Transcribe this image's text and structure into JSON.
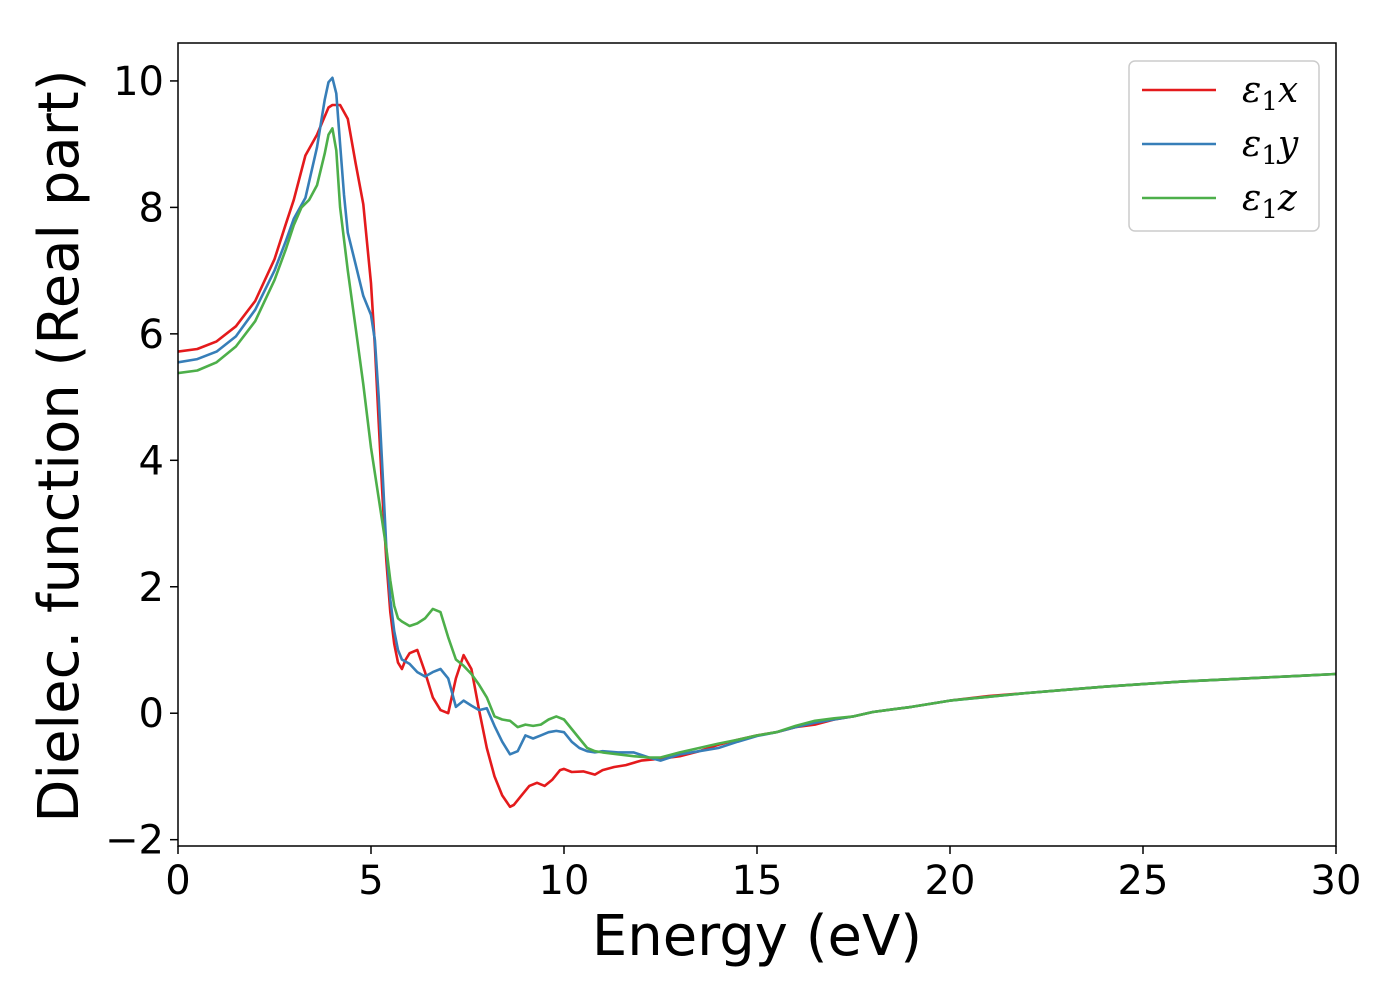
{
  "chart_data": {
    "type": "line",
    "title": "",
    "xlabel": "Energy (eV)",
    "ylabel": "Dielec. function (Real part)",
    "xlim": [
      0,
      30
    ],
    "ylim": [
      -2.1,
      10.6
    ],
    "xticks": [
      0,
      5,
      10,
      15,
      20,
      25,
      30
    ],
    "xtick_labels": [
      "0",
      "5",
      "10",
      "15",
      "20",
      "25",
      "30"
    ],
    "yticks": [
      -2,
      0,
      2,
      4,
      6,
      8,
      10
    ],
    "ytick_labels": [
      "−2",
      "0",
      "2",
      "4",
      "6",
      "8",
      "10"
    ],
    "grid": false,
    "legend_position": "top-right",
    "series": [
      {
        "name": "ε1x",
        "label_base": "ε",
        "label_sub": "1",
        "label_var": "x",
        "color": "#e41a1c",
        "x": [
          0,
          0.5,
          1,
          1.5,
          2,
          2.5,
          2.8,
          3,
          3.3,
          3.6,
          3.9,
          4.0,
          4.2,
          4.4,
          4.6,
          4.8,
          5.0,
          5.1,
          5.2,
          5.3,
          5.4,
          5.5,
          5.6,
          5.7,
          5.8,
          5.9,
          6.0,
          6.2,
          6.4,
          6.6,
          6.8,
          7.0,
          7.2,
          7.4,
          7.6,
          7.8,
          8.0,
          8.2,
          8.4,
          8.6,
          8.7,
          8.9,
          9.1,
          9.3,
          9.5,
          9.7,
          9.9,
          10.0,
          10.2,
          10.5,
          10.8,
          11.0,
          11.3,
          11.6,
          12,
          12.5,
          13,
          13.5,
          14,
          14.5,
          15,
          15.5,
          16,
          16.5,
          17,
          17.5,
          18,
          19,
          20,
          21,
          22,
          23,
          24,
          25,
          26,
          27,
          28,
          29,
          30
        ],
        "y": [
          5.72,
          5.76,
          5.88,
          6.12,
          6.52,
          7.18,
          7.75,
          8.12,
          8.82,
          9.15,
          9.58,
          9.62,
          9.62,
          9.4,
          8.7,
          8.05,
          6.8,
          5.8,
          4.6,
          3.4,
          2.4,
          1.6,
          1.1,
          0.8,
          0.7,
          0.85,
          0.95,
          1.0,
          0.65,
          0.25,
          0.05,
          0.0,
          0.55,
          0.92,
          0.7,
          0.05,
          -0.55,
          -1.0,
          -1.3,
          -1.48,
          -1.45,
          -1.3,
          -1.15,
          -1.1,
          -1.15,
          -1.05,
          -0.9,
          -0.88,
          -0.93,
          -0.92,
          -0.97,
          -0.9,
          -0.85,
          -0.82,
          -0.75,
          -0.72,
          -0.68,
          -0.6,
          -0.5,
          -0.42,
          -0.35,
          -0.3,
          -0.22,
          -0.18,
          -0.1,
          -0.05,
          0.02,
          0.1,
          0.2,
          0.27,
          0.32,
          0.37,
          0.42,
          0.46,
          0.5,
          0.53,
          0.56,
          0.59,
          0.62
        ]
      },
      {
        "name": "ε1y",
        "label_base": "ε",
        "label_sub": "1",
        "label_var": "y",
        "color": "#377eb8",
        "x": [
          0,
          0.5,
          1,
          1.5,
          2,
          2.5,
          2.8,
          3,
          3.3,
          3.6,
          3.8,
          3.9,
          4.0,
          4.1,
          4.2,
          4.3,
          4.4,
          4.6,
          4.8,
          5.0,
          5.1,
          5.2,
          5.3,
          5.4,
          5.5,
          5.6,
          5.7,
          5.8,
          6.0,
          6.2,
          6.4,
          6.6,
          6.8,
          7.0,
          7.2,
          7.4,
          7.6,
          7.8,
          8.0,
          8.2,
          8.4,
          8.6,
          8.8,
          9.0,
          9.2,
          9.4,
          9.6,
          9.8,
          10.0,
          10.2,
          10.4,
          10.6,
          10.8,
          11.0,
          11.4,
          11.8,
          12.2,
          12.5,
          13,
          13.5,
          14,
          14.5,
          15,
          15.5,
          16,
          16.5,
          17,
          17.5,
          18,
          19,
          20,
          21,
          22,
          23,
          24,
          25,
          26,
          27,
          28,
          29,
          30
        ],
        "y": [
          5.55,
          5.6,
          5.72,
          5.96,
          6.38,
          7.0,
          7.48,
          7.82,
          8.15,
          8.95,
          9.7,
          9.98,
          10.05,
          9.8,
          9.0,
          8.2,
          7.6,
          7.1,
          6.6,
          6.3,
          5.9,
          5.0,
          3.8,
          2.6,
          1.8,
          1.3,
          1.0,
          0.85,
          0.78,
          0.65,
          0.58,
          0.65,
          0.7,
          0.55,
          0.1,
          0.2,
          0.12,
          0.05,
          0.08,
          -0.2,
          -0.45,
          -0.65,
          -0.6,
          -0.35,
          -0.4,
          -0.35,
          -0.3,
          -0.28,
          -0.3,
          -0.45,
          -0.55,
          -0.6,
          -0.62,
          -0.6,
          -0.62,
          -0.62,
          -0.7,
          -0.75,
          -0.65,
          -0.6,
          -0.55,
          -0.45,
          -0.36,
          -0.3,
          -0.22,
          -0.15,
          -0.1,
          -0.05,
          0.02,
          0.1,
          0.2,
          0.26,
          0.32,
          0.37,
          0.42,
          0.46,
          0.5,
          0.53,
          0.56,
          0.59,
          0.62
        ]
      },
      {
        "name": "ε1z",
        "label_base": "ε",
        "label_sub": "1",
        "label_var": "z",
        "color": "#4daf4a",
        "x": [
          0,
          0.5,
          1,
          1.5,
          2,
          2.5,
          2.8,
          3,
          3.2,
          3.4,
          3.6,
          3.8,
          3.9,
          4.0,
          4.1,
          4.2,
          4.4,
          4.6,
          4.8,
          5.0,
          5.2,
          5.4,
          5.5,
          5.6,
          5.7,
          5.8,
          6.0,
          6.2,
          6.4,
          6.6,
          6.8,
          7.0,
          7.2,
          7.4,
          7.6,
          7.8,
          8.0,
          8.2,
          8.4,
          8.6,
          8.8,
          9.0,
          9.2,
          9.4,
          9.6,
          9.8,
          10.0,
          10.2,
          10.4,
          10.6,
          10.8,
          11.0,
          11.4,
          11.8,
          12.2,
          12.5,
          13,
          13.5,
          14,
          14.5,
          15,
          15.5,
          16,
          16.5,
          17,
          17.5,
          18,
          19,
          20,
          21,
          22,
          23,
          24,
          25,
          26,
          27,
          28,
          29,
          30
        ],
        "y": [
          5.38,
          5.42,
          5.55,
          5.8,
          6.2,
          6.85,
          7.35,
          7.72,
          8.0,
          8.12,
          8.35,
          8.85,
          9.15,
          9.25,
          8.9,
          8.0,
          7.0,
          6.1,
          5.2,
          4.2,
          3.4,
          2.6,
          2.1,
          1.7,
          1.5,
          1.45,
          1.38,
          1.42,
          1.5,
          1.65,
          1.6,
          1.2,
          0.85,
          0.75,
          0.62,
          0.45,
          0.25,
          -0.05,
          -0.1,
          -0.12,
          -0.22,
          -0.18,
          -0.2,
          -0.18,
          -0.1,
          -0.05,
          -0.1,
          -0.25,
          -0.4,
          -0.55,
          -0.6,
          -0.62,
          -0.65,
          -0.68,
          -0.7,
          -0.7,
          -0.62,
          -0.55,
          -0.48,
          -0.42,
          -0.35,
          -0.3,
          -0.2,
          -0.12,
          -0.08,
          -0.05,
          0.02,
          0.1,
          0.2,
          0.26,
          0.32,
          0.37,
          0.42,
          0.46,
          0.5,
          0.53,
          0.56,
          0.59,
          0.62
        ]
      }
    ]
  }
}
